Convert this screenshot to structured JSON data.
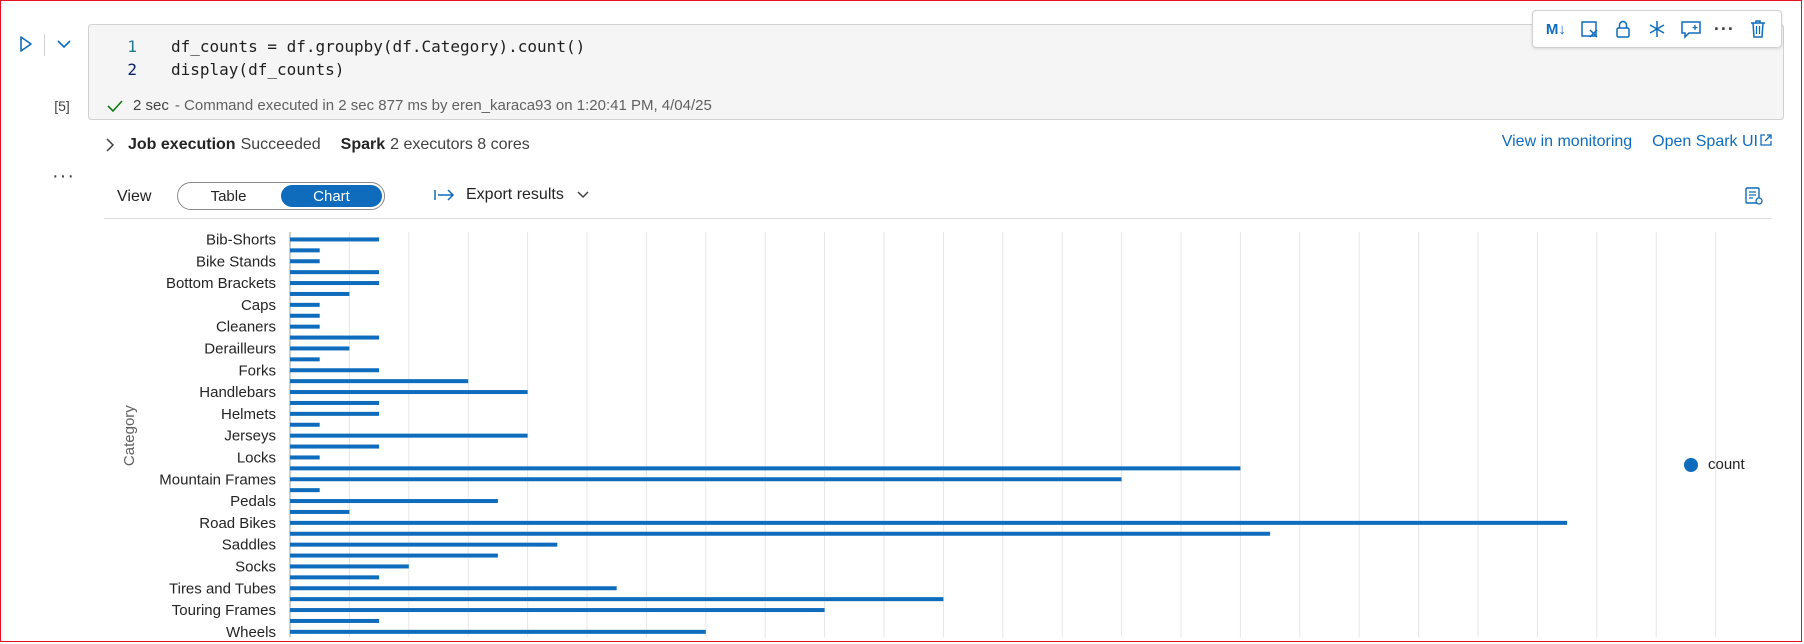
{
  "cell": {
    "execution_count": "[5]",
    "code_lines": [
      {
        "num": "1",
        "text": "df_counts = df.groupby(df.Category).count()"
      },
      {
        "num": "2",
        "text": "display(df_counts)"
      }
    ],
    "status_duration": "2 sec",
    "status_text": "- Command executed in 2 sec 877 ms by eren_karaca93 on 1:20:41 PM, 4/04/25"
  },
  "toolbar": {
    "icons": [
      "markdown-toggle-icon",
      "clear-output-icon",
      "lock-icon",
      "freeze-icon",
      "comment-icon",
      "more-icon",
      "delete-icon"
    ],
    "markdown_label": "M↓"
  },
  "job": {
    "label": "Job execution",
    "status": "Succeeded",
    "spark_label": "Spark",
    "spark_info": "2 executors 8 cores",
    "monitor_link": "View in monitoring",
    "spark_ui_link": "Open Spark UI"
  },
  "view": {
    "label": "View",
    "options": [
      "Table",
      "Chart"
    ],
    "selected": "Chart",
    "export_label": "Export results"
  },
  "colors": {
    "accent": "#0f6cbd",
    "frame": "#e81123"
  },
  "chart_data": {
    "type": "bar",
    "orientation": "horizontal",
    "ylabel": "Category",
    "legend": {
      "entries": [
        "count"
      ],
      "placement": "right"
    },
    "grid": true,
    "category_labels": [
      "Bib-Shorts",
      "Bike Stands",
      "Bottom Brackets",
      "Caps",
      "Cleaners",
      "Derailleurs",
      "Forks",
      "Handlebars",
      "Helmets",
      "Jerseys",
      "Locks",
      "Mountain Frames",
      "Pedals",
      "Road Bikes",
      "Saddles",
      "Socks",
      "Tires and Tubes",
      "Touring Frames",
      "Wheels"
    ],
    "label_every": 2,
    "series": [
      {
        "name": "count",
        "values": [
          3,
          1,
          1,
          3,
          3,
          2,
          1,
          1,
          1,
          3,
          2,
          1,
          3,
          6,
          8,
          3,
          3,
          1,
          8,
          3,
          1,
          32,
          28,
          1,
          7,
          2,
          43,
          33,
          9,
          7,
          4,
          3,
          11,
          22,
          18,
          3,
          14
        ]
      }
    ],
    "xlim": [
      0,
      50
    ]
  }
}
